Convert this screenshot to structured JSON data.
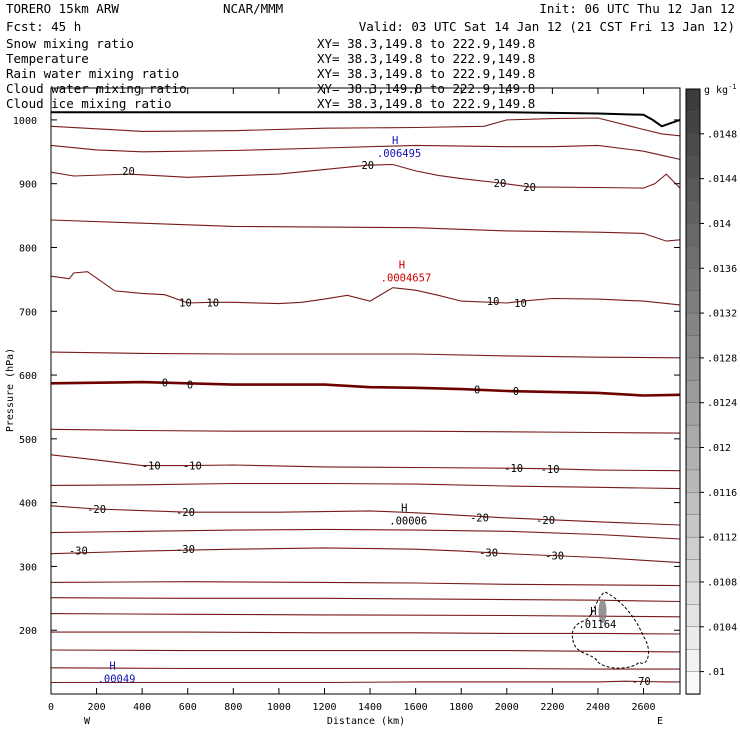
{
  "header": {
    "model": "TORERO  15km ARW",
    "center": "NCAR/MMM",
    "init": "Init: 06 UTC Thu 12 Jan 12",
    "fcst": "Fcst:   45 h",
    "valid": "Valid: 03 UTC Sat 14 Jan 12 (21 CST Fri 13 Jan 12)"
  },
  "legend": [
    {
      "label": "Snow mixing ratio",
      "xy": "XY=  38.3,149.8 to 222.9,149.8",
      "color": "#000000"
    },
    {
      "label": "Temperature",
      "xy": "XY=  38.3,149.8 to 222.9,149.8",
      "color": "#c00000"
    },
    {
      "label": "Rain water mixing ratio",
      "xy": "XY=  38.3,149.8 to 222.9,149.8",
      "color": "#e00000"
    },
    {
      "label": "Cloud water mixing ratio",
      "xy": "XY=  38.3,149.8 to 222.9,149.8",
      "color": "#1010b0"
    },
    {
      "label": "Cloud ice mixing ratio",
      "xy": "XY=  38.3,149.8 to 222.9,149.8",
      "color": "#000000"
    }
  ],
  "colors": {
    "temperature": "#7a1a1a",
    "freezing": "#6e0000",
    "ground": "#000000",
    "rain": "#d00000",
    "cloud_water": "#1010b0"
  },
  "chart_data": {
    "type": "cross-section",
    "xlabel": "Distance (km)",
    "ylabel": "Pressure (hPa)",
    "xlim": [
      0,
      2760
    ],
    "ylim": [
      1050,
      100
    ],
    "x_ticks": [
      "0",
      "200",
      "400",
      "600",
      "800",
      "1000",
      "1200",
      "1400",
      "1600",
      "1800",
      "2000",
      "2200",
      "2400",
      "2600"
    ],
    "x_tick_values": [
      0,
      200,
      400,
      600,
      800,
      1000,
      1200,
      1400,
      1600,
      1800,
      2000,
      2200,
      2400,
      2600
    ],
    "y_ticks": [
      "200",
      "300",
      "400",
      "500",
      "600",
      "700",
      "800",
      "900",
      "1000"
    ],
    "y_tick_values": [
      200,
      300,
      400,
      500,
      600,
      700,
      800,
      900,
      1000
    ],
    "west_label": "W",
    "east_label": "E",
    "colorbar": {
      "unit": "g kg",
      "unit_exp": "-1",
      "labels": [
        ".0148",
        ".0144",
        ".014",
        ".0136",
        ".0132",
        ".0128",
        ".0124",
        ".012",
        ".0116",
        ".0112",
        ".0108",
        ".0104",
        ".01"
      ],
      "label_values": [
        0.0148,
        0.0144,
        0.014,
        0.0136,
        0.0132,
        0.0128,
        0.0124,
        0.012,
        0.0116,
        0.0112,
        0.0108,
        0.0104,
        0.01
      ],
      "range": [
        0.0098,
        0.0152
      ]
    },
    "temperature_labels": [
      {
        "text": "-70",
        "x": 2590,
        "p": 120
      },
      {
        "text": "-30",
        "x": 120,
        "p": 325
      },
      {
        "text": "-30",
        "x": 590,
        "p": 327
      },
      {
        "text": "-30",
        "x": 1920,
        "p": 322
      },
      {
        "text": "-30",
        "x": 2210,
        "p": 317
      },
      {
        "text": "-20",
        "x": 200,
        "p": 390
      },
      {
        "text": "-20",
        "x": 590,
        "p": 385
      },
      {
        "text": "-20",
        "x": 1880,
        "p": 377
      },
      {
        "text": "-20",
        "x": 2170,
        "p": 373
      },
      {
        "text": "-10",
        "x": 440,
        "p": 458
      },
      {
        "text": "-10",
        "x": 620,
        "p": 458
      },
      {
        "text": "-10",
        "x": 2030,
        "p": 454
      },
      {
        "text": "-10",
        "x": 2190,
        "p": 453
      },
      {
        "text": "0",
        "x": 500,
        "p": 588
      },
      {
        "text": "0",
        "x": 610,
        "p": 585
      },
      {
        "text": "0",
        "x": 1870,
        "p": 577
      },
      {
        "text": "0",
        "x": 2040,
        "p": 575
      },
      {
        "text": "10",
        "x": 590,
        "p": 714
      },
      {
        "text": "10",
        "x": 710,
        "p": 714
      },
      {
        "text": "10",
        "x": 1940,
        "p": 716
      },
      {
        "text": "10",
        "x": 2060,
        "p": 713
      },
      {
        "text": "20",
        "x": 340,
        "p": 920
      },
      {
        "text": "20",
        "x": 1390,
        "p": 929
      },
      {
        "text": "20",
        "x": 1970,
        "p": 901
      },
      {
        "text": "20",
        "x": 2100,
        "p": 895
      }
    ],
    "temperature_isotherms": [
      {
        "value": -70,
        "x": [
          0,
          600,
          1200,
          1600,
          2000,
          2400,
          2520,
          2700,
          2760
        ],
        "p": [
          118,
          118,
          118,
          119,
          119,
          119,
          120,
          119,
          119
        ]
      },
      {
        "value": -65,
        "x": [
          0,
          600,
          1200,
          2000,
          2400,
          2760
        ],
        "p": [
          141,
          140,
          140,
          140,
          139,
          139
        ]
      },
      {
        "value": -60,
        "x": [
          0,
          600,
          1200,
          2000,
          2400,
          2760
        ],
        "p": [
          169,
          168,
          168,
          168,
          167,
          166
        ]
      },
      {
        "value": -55,
        "x": [
          0,
          600,
          1200,
          1600,
          2000,
          2400,
          2760
        ],
        "p": [
          197,
          197,
          196,
          196,
          195,
          195,
          194
        ]
      },
      {
        "value": -50,
        "x": [
          0,
          600,
          1200,
          2000,
          2400,
          2760
        ],
        "p": [
          226,
          225,
          224,
          223,
          222,
          221
        ]
      },
      {
        "value": -45,
        "x": [
          0,
          600,
          1200,
          2000,
          2400,
          2760
        ],
        "p": [
          251,
          250,
          250,
          248,
          247,
          245
        ]
      },
      {
        "value": -40,
        "x": [
          0,
          600,
          1200,
          1600,
          2000,
          2400,
          2760
        ],
        "p": [
          275,
          276,
          275,
          274,
          272,
          271,
          270
        ]
      },
      {
        "value": -30,
        "x": [
          0,
          400,
          800,
          1200,
          1600,
          1800,
          2000,
          2400,
          2760
        ],
        "p": [
          320,
          324,
          327,
          329,
          327,
          324,
          320,
          314,
          306
        ]
      },
      {
        "value": -25,
        "x": [
          0,
          400,
          800,
          1200,
          1600,
          2000,
          2400,
          2760
        ],
        "p": [
          353,
          355,
          357,
          358,
          357,
          355,
          350,
          343
        ]
      },
      {
        "value": -20,
        "x": [
          0,
          200,
          600,
          1000,
          1400,
          1600,
          2000,
          2400,
          2760
        ],
        "p": [
          395,
          390,
          385,
          385,
          387,
          384,
          376,
          370,
          365
        ]
      },
      {
        "value": -15,
        "x": [
          0,
          400,
          800,
          1200,
          1600,
          2000,
          2400,
          2760
        ],
        "p": [
          427,
          428,
          430,
          430,
          429,
          426,
          424,
          422
        ]
      },
      {
        "value": -10,
        "x": [
          0,
          200,
          400,
          600,
          800,
          1200,
          1600,
          2000,
          2200,
          2400,
          2760
        ],
        "p": [
          475,
          467,
          458,
          458,
          459,
          456,
          455,
          454,
          453,
          451,
          450
        ]
      },
      {
        "value": -5,
        "x": [
          0,
          400,
          800,
          1200,
          1600,
          2000,
          2400,
          2760
        ],
        "p": [
          515,
          513,
          512,
          512,
          512,
          511,
          510,
          509
        ]
      },
      {
        "value": 0,
        "x": [
          0,
          400,
          800,
          1200,
          1400,
          1600,
          1800,
          2000,
          2400,
          2600,
          2760
        ],
        "p": [
          587,
          589,
          585,
          585,
          581,
          580,
          578,
          575,
          572,
          568,
          569
        ]
      },
      {
        "value": 5,
        "x": [
          0,
          400,
          800,
          1200,
          1600,
          2000,
          2400,
          2760
        ],
        "p": [
          636,
          634,
          633,
          633,
          633,
          630,
          628,
          627
        ]
      },
      {
        "value": 10,
        "x": [
          0,
          80,
          100,
          160,
          280,
          400,
          500,
          600,
          700,
          800,
          1000,
          1100,
          1200,
          1300,
          1400,
          1500,
          1600,
          1700,
          1800,
          2000,
          2100,
          2200,
          2400,
          2600,
          2760
        ],
        "p": [
          755,
          751,
          760,
          762,
          732,
          728,
          726,
          713,
          714,
          714,
          712,
          714,
          719,
          725,
          716,
          737,
          733,
          725,
          716,
          713,
          717,
          720,
          719,
          716,
          710
        ]
      },
      {
        "value": 15,
        "x": [
          0,
          400,
          800,
          1200,
          1600,
          2000,
          2400,
          2600,
          2700,
          2760
        ],
        "p": [
          843,
          838,
          833,
          832,
          831,
          826,
          824,
          822,
          810,
          812
        ]
      },
      {
        "value": 20,
        "x": [
          0,
          100,
          340,
          600,
          1000,
          1390,
          1500,
          1600,
          1700,
          1800,
          1970,
          2100,
          2400,
          2600,
          2650,
          2700,
          2760
        ],
        "p": [
          918,
          912,
          915,
          910,
          915,
          929,
          930,
          920,
          913,
          908,
          901,
          895,
          894,
          893,
          900,
          915,
          893
        ]
      },
      {
        "value": 25,
        "x": [
          0,
          200,
          400,
          800,
          1200,
          1600,
          2000,
          2200,
          2400,
          2600,
          2700,
          2760
        ],
        "p": [
          960,
          953,
          950,
          952,
          956,
          960,
          958,
          958,
          960,
          951,
          943,
          938
        ]
      },
      {
        "value": 30,
        "x": [
          0,
          200,
          400,
          800,
          1200,
          1600,
          1900,
          2000,
          2200,
          2400,
          2600,
          2680,
          2760
        ],
        "p": [
          990,
          986,
          982,
          983,
          987,
          988,
          990,
          1000,
          1002,
          1003,
          985,
          978,
          975
        ]
      }
    ],
    "ground": {
      "x": [
        0,
        400,
        800,
        1200,
        1600,
        2000,
        2400,
        2600,
        2640,
        2680,
        2720,
        2760
      ],
      "p": [
        1012,
        1012,
        1012,
        1012,
        1012,
        1012,
        1010,
        1008,
        1000,
        990,
        995,
        1000
      ]
    },
    "extrema": [
      {
        "label": "H",
        "value": ".00049",
        "x": 270,
        "p": 124,
        "color": "#1010b0"
      },
      {
        "label": "H",
        "value": ".00006",
        "x": 1550,
        "p": 372,
        "color": "#000000"
      },
      {
        "label": "H",
        "value": ".0004657",
        "x": 1540,
        "p": 753,
        "color": "#d00000"
      },
      {
        "label": "H",
        "value": ".006495",
        "x": 1510,
        "p": 948,
        "color": "#1010b0"
      },
      {
        "label": "H",
        "value": ".01164",
        "x": 2380,
        "p": 210,
        "color": "#000000"
      }
    ]
  }
}
